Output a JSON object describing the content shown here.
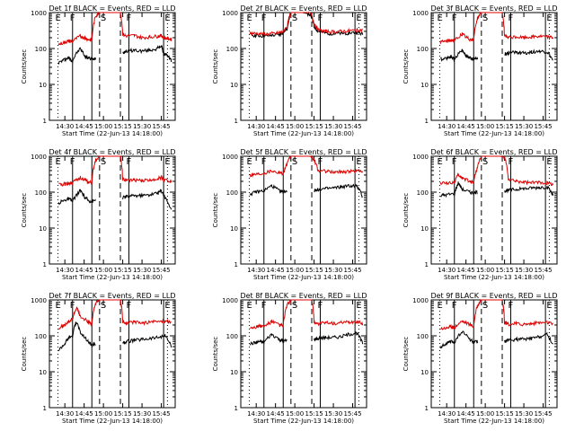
{
  "figure": {
    "panels_layout": "3x3 grid",
    "colors": {
      "events": "#000000",
      "lld": "#dd0000"
    }
  },
  "chart_data": [
    {
      "type": "line",
      "title": "Det 1f BLACK = Events, RED = LLD",
      "xlabel": "Start Time (22-Jun-13 14:18:00)",
      "ylabel": "Counts/sec",
      "y_scale": "log",
      "ylim": [
        1,
        1000
      ],
      "xlim": [
        14.3,
        15.93
      ],
      "x_ticks": [
        "14:30",
        "14:45",
        "15:00",
        "15:15",
        "15:30",
        "15:45"
      ],
      "y_ticks": [
        "1",
        "10",
        "100",
        "1000"
      ],
      "markers": {
        "solid": [
          14.6,
          14.85,
          15.33,
          15.78
        ],
        "dashed": [
          14.95,
          15.22
        ],
        "dotted": [
          14.41,
          15.83
        ],
        "letters": [
          "E",
          "F",
          "S",
          "F",
          "E"
        ]
      },
      "x": [
        14.3,
        14.42,
        14.5,
        14.55,
        14.6,
        14.7,
        14.76,
        14.8,
        14.85,
        14.9,
        14.95,
        15.0,
        15.1,
        15.2,
        15.22,
        15.25,
        15.3,
        15.4,
        15.5,
        15.6,
        15.7,
        15.75,
        15.78,
        15.83,
        15.88
      ],
      "series": [
        {
          "name": "Events",
          "values": [
            null,
            40,
            50,
            55,
            45,
            100,
            60,
            55,
            50,
            55,
            null,
            null,
            null,
            null,
            null,
            80,
            85,
            90,
            85,
            90,
            100,
            120,
            70,
            65,
            45
          ]
        },
        {
          "name": "LLD",
          "values": [
            null,
            130,
            150,
            160,
            160,
            220,
            200,
            180,
            170,
            800,
            1000,
            1000,
            1000,
            1000,
            1000,
            250,
            220,
            230,
            200,
            210,
            220,
            230,
            200,
            190,
            180
          ]
        }
      ]
    },
    {
      "type": "line",
      "title": "Det 2f BLACK = Events, RED = LLD",
      "xlabel": "Start Time (22-Jun-13 14:18:00)",
      "ylabel": "Counts/sec",
      "y_scale": "log",
      "ylim": [
        1,
        1000
      ],
      "xlim": [
        14.3,
        15.93
      ],
      "x_ticks": [
        "14:30",
        "14:45",
        "15:00",
        "15:15",
        "15:30",
        "15:45"
      ],
      "y_ticks": [
        "1",
        "10",
        "100",
        "1000"
      ],
      "markers": {
        "solid": [
          14.6,
          14.85,
          15.33,
          15.78
        ],
        "dashed": [
          14.95,
          15.22
        ],
        "dotted": [
          14.41,
          15.83
        ],
        "letters": [
          "E",
          "F",
          "S",
          "F",
          "E"
        ]
      },
      "x": [
        14.3,
        14.42,
        14.5,
        14.6,
        14.7,
        14.8,
        14.85,
        14.9,
        14.95,
        15.0,
        15.1,
        15.2,
        15.25,
        15.3,
        15.4,
        15.5,
        15.6,
        15.7,
        15.8,
        15.88
      ],
      "series": [
        {
          "name": "Events",
          "values": [
            null,
            240,
            230,
            220,
            230,
            240,
            280,
            350,
            1000,
            1000,
            1000,
            900,
            400,
            300,
            270,
            260,
            260,
            270,
            280,
            250
          ]
        },
        {
          "name": "LLD",
          "values": [
            null,
            270,
            260,
            250,
            260,
            270,
            300,
            400,
            1000,
            1000,
            1000,
            1000,
            500,
            330,
            300,
            290,
            300,
            310,
            320,
            330
          ]
        }
      ]
    },
    {
      "type": "line",
      "title": "Det 3f BLACK = Events, RED = LLD",
      "xlabel": "Start Time (22-Jun-13 14:18:00)",
      "ylabel": "Counts/sec",
      "y_scale": "log",
      "ylim": [
        1,
        1000
      ],
      "xlim": [
        14.3,
        15.93
      ],
      "x_ticks": [
        "14:30",
        "14:45",
        "15:00",
        "15:15",
        "15:30",
        "15:45"
      ],
      "y_ticks": [
        "1",
        "10",
        "100",
        "1000"
      ],
      "markers": {
        "solid": [
          14.6,
          14.85,
          15.33,
          15.78
        ],
        "dashed": [
          14.95,
          15.22
        ],
        "dotted": [
          14.41,
          15.83
        ],
        "letters": [
          "E",
          "F",
          "S",
          "F",
          "E"
        ]
      },
      "x": [
        14.3,
        14.42,
        14.5,
        14.55,
        14.6,
        14.7,
        14.76,
        14.8,
        14.85,
        14.9,
        14.95,
        15.0,
        15.1,
        15.2,
        15.22,
        15.25,
        15.3,
        15.4,
        15.5,
        15.6,
        15.7,
        15.8,
        15.88
      ],
      "series": [
        {
          "name": "Events",
          "values": [
            null,
            50,
            55,
            60,
            50,
            90,
            60,
            55,
            50,
            55,
            null,
            null,
            null,
            null,
            null,
            70,
            75,
            80,
            75,
            80,
            85,
            80,
            45
          ]
        },
        {
          "name": "LLD",
          "values": [
            null,
            150,
            160,
            170,
            170,
            250,
            200,
            180,
            170,
            700,
            1000,
            1000,
            1000,
            1000,
            1000,
            220,
            200,
            210,
            200,
            210,
            220,
            210,
            200
          ]
        }
      ]
    },
    {
      "type": "line",
      "title": "Det 4f BLACK = Events, RED = LLD",
      "xlabel": "Start Time (22-Jun-13 14:18:00)",
      "ylabel": "Counts/sec",
      "y_scale": "log",
      "ylim": [
        1,
        1000
      ],
      "xlim": [
        14.3,
        15.93
      ],
      "x_ticks": [
        "14:30",
        "14:45",
        "15:00",
        "15:15",
        "15:30",
        "15:45"
      ],
      "y_ticks": [
        "1",
        "10",
        "100",
        "1000"
      ],
      "markers": {
        "solid": [
          14.6,
          14.85,
          15.33,
          15.78
        ],
        "dashed": [
          14.95,
          15.22
        ],
        "dotted": [
          14.41,
          15.83
        ],
        "letters": [
          "E",
          "F",
          "S",
          "F",
          "E"
        ]
      },
      "x": [
        14.3,
        14.42,
        14.5,
        14.55,
        14.6,
        14.7,
        14.76,
        14.8,
        14.85,
        14.9,
        14.95,
        15.0,
        15.1,
        15.2,
        15.22,
        15.25,
        15.3,
        15.4,
        15.5,
        15.6,
        15.7,
        15.75,
        15.8,
        15.88
      ],
      "series": [
        {
          "name": "Events",
          "values": [
            null,
            50,
            60,
            65,
            55,
            110,
            70,
            60,
            55,
            60,
            null,
            null,
            null,
            null,
            null,
            70,
            75,
            80,
            80,
            85,
            95,
            110,
            70,
            30
          ]
        },
        {
          "name": "LLD",
          "values": [
            null,
            160,
            170,
            180,
            180,
            260,
            220,
            190,
            180,
            800,
            1000,
            1000,
            1000,
            1000,
            1000,
            230,
            210,
            220,
            210,
            220,
            240,
            260,
            220,
            200
          ]
        }
      ]
    },
    {
      "type": "line",
      "title": "Det 5f BLACK = Events, RED = LLD",
      "xlabel": "Start Time (22-Jun-13 14:18:00)",
      "ylabel": "Counts/sec",
      "y_scale": "log",
      "ylim": [
        1,
        1000
      ],
      "xlim": [
        14.3,
        15.93
      ],
      "x_ticks": [
        "14:30",
        "14:45",
        "15:00",
        "15:15",
        "15:30",
        "15:45"
      ],
      "y_ticks": [
        "1",
        "10",
        "100",
        "1000"
      ],
      "markers": {
        "solid": [
          14.6,
          14.85,
          15.33,
          15.78
        ],
        "dashed": [
          14.95,
          15.22
        ],
        "dotted": [
          14.41,
          15.83
        ],
        "letters": [
          "E",
          "F",
          "S",
          "F",
          "E"
        ]
      },
      "x": [
        14.3,
        14.42,
        14.5,
        14.6,
        14.7,
        14.8,
        14.85,
        14.9,
        14.95,
        15.0,
        15.1,
        15.2,
        15.25,
        15.3,
        15.4,
        15.5,
        15.6,
        15.7,
        15.8,
        15.88
      ],
      "series": [
        {
          "name": "Events",
          "values": [
            null,
            90,
            100,
            110,
            150,
            110,
            100,
            110,
            null,
            null,
            null,
            null,
            110,
            120,
            125,
            130,
            140,
            150,
            150,
            70
          ]
        },
        {
          "name": "LLD",
          "values": [
            null,
            300,
            320,
            340,
            400,
            350,
            340,
            600,
            1000,
            1000,
            1000,
            1000,
            800,
            400,
            380,
            360,
            370,
            380,
            390,
            400
          ]
        }
      ]
    },
    {
      "type": "line",
      "title": "Det 6f BLACK = Events, RED = LLD",
      "xlabel": "Start Time (22-Jun-13 14:18:00)",
      "ylabel": "Counts/sec",
      "y_scale": "log",
      "ylim": [
        1,
        1000
      ],
      "xlim": [
        14.3,
        15.93
      ],
      "x_ticks": [
        "14:30",
        "14:45",
        "15:00",
        "15:15",
        "15:30",
        "15:45"
      ],
      "y_ticks": [
        "1",
        "10",
        "100",
        "1000"
      ],
      "markers": {
        "solid": [
          14.6,
          14.85,
          15.33,
          15.78
        ],
        "dashed": [
          14.95,
          15.22
        ],
        "dotted": [
          14.41,
          15.83
        ],
        "letters": [
          "E",
          "F",
          "S",
          "F",
          "E"
        ]
      },
      "x": [
        14.3,
        14.42,
        14.5,
        14.6,
        14.65,
        14.7,
        14.8,
        14.85,
        14.9,
        14.95,
        15.0,
        15.1,
        15.2,
        15.25,
        15.3,
        15.4,
        15.5,
        15.6,
        15.7,
        15.8,
        15.88
      ],
      "series": [
        {
          "name": "Events",
          "values": [
            null,
            80,
            85,
            90,
            180,
            120,
            100,
            95,
            100,
            null,
            null,
            null,
            null,
            110,
            115,
            120,
            125,
            130,
            135,
            140,
            80
          ]
        },
        {
          "name": "LLD",
          "values": [
            null,
            180,
            180,
            190,
            300,
            250,
            200,
            190,
            500,
            1000,
            1000,
            1000,
            1000,
            900,
            220,
            200,
            190,
            180,
            190,
            180,
            170
          ]
        }
      ]
    },
    {
      "type": "line",
      "title": "Det 7f BLACK = Events, RED = LLD",
      "xlabel": "Start Time (22-Jun-13 14:18:00)",
      "ylabel": "Counts/sec",
      "y_scale": "log",
      "ylim": [
        1,
        1000
      ],
      "xlim": [
        14.3,
        15.93
      ],
      "x_ticks": [
        "14:30",
        "14:45",
        "15:00",
        "15:15",
        "15:30",
        "15:45"
      ],
      "y_ticks": [
        "1",
        "10",
        "100",
        "1000"
      ],
      "markers": {
        "solid": [
          14.6,
          14.85,
          15.33,
          15.78
        ],
        "dashed": [
          14.95,
          15.22
        ],
        "dotted": [
          14.41,
          15.83
        ],
        "letters": [
          "E",
          "F",
          "S",
          "F",
          "E"
        ]
      },
      "x": [
        14.3,
        14.42,
        14.5,
        14.55,
        14.6,
        14.65,
        14.7,
        14.8,
        14.85,
        14.9,
        14.95,
        15.0,
        15.1,
        15.2,
        15.22,
        15.25,
        15.3,
        15.4,
        15.5,
        15.6,
        15.7,
        15.8,
        15.88
      ],
      "series": [
        {
          "name": "Events",
          "values": [
            null,
            40,
            60,
            90,
            100,
            250,
            120,
            70,
            55,
            60,
            null,
            null,
            null,
            null,
            null,
            60,
            70,
            75,
            80,
            85,
            90,
            100,
            50
          ]
        },
        {
          "name": "LLD",
          "values": [
            null,
            160,
            200,
            250,
            300,
            600,
            350,
            250,
            200,
            800,
            1000,
            1000,
            1000,
            1000,
            1000,
            250,
            230,
            240,
            230,
            240,
            250,
            260,
            230
          ]
        }
      ]
    },
    {
      "type": "line",
      "title": "Det 8f BLACK = Events, RED = LLD",
      "xlabel": "Start Time (22-Jun-13 14:18:00)",
      "ylabel": "Counts/sec",
      "y_scale": "log",
      "ylim": [
        1,
        1000
      ],
      "xlim": [
        14.3,
        15.93
      ],
      "x_ticks": [
        "14:30",
        "14:45",
        "15:00",
        "15:15",
        "15:30",
        "15:45"
      ],
      "y_ticks": [
        "1",
        "10",
        "100",
        "1000"
      ],
      "markers": {
        "solid": [
          14.6,
          14.85,
          15.33,
          15.78
        ],
        "dashed": [
          14.95,
          15.22
        ],
        "dotted": [
          14.41,
          15.83
        ],
        "letters": [
          "E",
          "F",
          "S",
          "F",
          "E"
        ]
      },
      "x": [
        14.3,
        14.42,
        14.5,
        14.55,
        14.6,
        14.7,
        14.8,
        14.85,
        14.9,
        14.95,
        15.0,
        15.1,
        15.2,
        15.22,
        15.25,
        15.3,
        15.4,
        15.5,
        15.6,
        15.7,
        15.8,
        15.88
      ],
      "series": [
        {
          "name": "Events",
          "values": [
            null,
            60,
            65,
            70,
            65,
            110,
            80,
            70,
            75,
            null,
            null,
            null,
            null,
            null,
            80,
            85,
            90,
            90,
            95,
            110,
            120,
            60
          ]
        },
        {
          "name": "LLD",
          "values": [
            null,
            170,
            180,
            190,
            180,
            250,
            200,
            190,
            700,
            1000,
            1000,
            1000,
            1000,
            1000,
            240,
            220,
            230,
            220,
            230,
            240,
            250,
            220
          ]
        }
      ]
    },
    {
      "type": "line",
      "title": "Det 9f BLACK = Events, RED = LLD",
      "xlabel": "Start Time (22-Jun-13 14:18:00)",
      "ylabel": "Counts/sec",
      "y_scale": "log",
      "ylim": [
        1,
        1000
      ],
      "xlim": [
        14.3,
        15.93
      ],
      "x_ticks": [
        "14:30",
        "14:45",
        "15:00",
        "15:15",
        "15:30",
        "15:45"
      ],
      "y_ticks": [
        "1",
        "10",
        "100",
        "1000"
      ],
      "markers": {
        "solid": [
          14.6,
          14.85,
          15.33,
          15.78
        ],
        "dashed": [
          14.95,
          15.22
        ],
        "dotted": [
          14.41,
          15.83
        ],
        "letters": [
          "E",
          "F",
          "S",
          "F",
          "E"
        ]
      },
      "x": [
        14.3,
        14.42,
        14.5,
        14.55,
        14.6,
        14.7,
        14.8,
        14.85,
        14.9,
        14.95,
        15.0,
        15.1,
        15.2,
        15.22,
        15.25,
        15.3,
        15.4,
        15.5,
        15.6,
        15.7,
        15.8,
        15.88
      ],
      "series": [
        {
          "name": "Events",
          "values": [
            null,
            50,
            60,
            70,
            65,
            130,
            80,
            65,
            70,
            null,
            null,
            null,
            null,
            null,
            70,
            75,
            80,
            80,
            85,
            95,
            110,
            55
          ]
        },
        {
          "name": "LLD",
          "values": [
            null,
            160,
            170,
            180,
            170,
            260,
            210,
            180,
            700,
            1000,
            1000,
            1000,
            1000,
            1000,
            230,
            210,
            220,
            210,
            220,
            230,
            240,
            210
          ]
        }
      ]
    }
  ]
}
